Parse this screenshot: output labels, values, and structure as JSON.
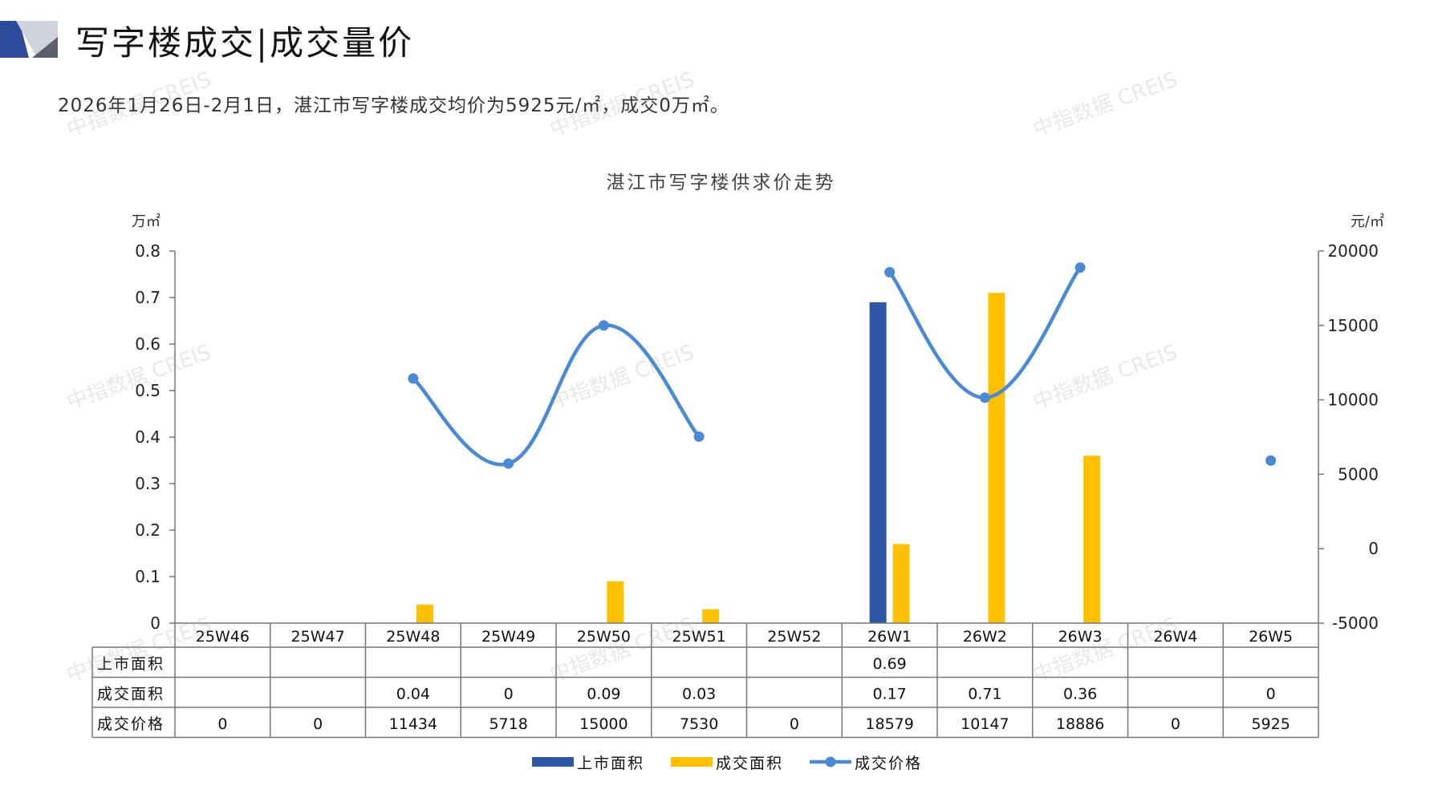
{
  "header": {
    "title": "写字楼成交|成交量价",
    "summary": "2026年1月26日-2月1日，湛江市写字楼成交均价为5925元/㎡，成交0万㎡。"
  },
  "watermark": "中指数据 CREIS",
  "colors": {
    "supply": "#2e58a6",
    "deal": "#ffc000",
    "price": "#4a8ad4",
    "accent_dark": "#2f4a9a",
    "accent_gray": "#cfd3dc"
  },
  "chart_data": {
    "type": "bar+line",
    "title": "湛江市写字楼供求价走势",
    "left_unit": "万㎡",
    "right_unit": "元/㎡",
    "left_ylim": [
      0,
      0.8
    ],
    "left_ticks": [
      "0.8",
      "0.7",
      "0.6",
      "0.5",
      "0.4",
      "0.3",
      "0.2",
      "0.1",
      "0"
    ],
    "right_ylim": [
      -5000,
      20000
    ],
    "right_ticks": [
      "20000",
      "15000",
      "10000",
      "5000",
      "0",
      "-5000"
    ],
    "categories": [
      "25W46",
      "25W47",
      "25W48",
      "25W49",
      "25W50",
      "25W51",
      "25W52",
      "26W1",
      "26W2",
      "26W3",
      "26W4",
      "26W5"
    ],
    "series": [
      {
        "name": "上市面积",
        "kind": "bar",
        "axis": "left",
        "values": [
          null,
          null,
          null,
          null,
          null,
          null,
          null,
          0.69,
          null,
          null,
          null,
          null
        ],
        "labels": [
          "",
          "",
          "",
          "",
          "",
          "",
          "",
          "0.69",
          "",
          "",
          "",
          ""
        ]
      },
      {
        "name": "成交面积",
        "kind": "bar",
        "axis": "left",
        "values": [
          null,
          null,
          0.04,
          0,
          0.09,
          0.03,
          null,
          0.17,
          0.71,
          0.36,
          null,
          0
        ],
        "labels": [
          "",
          "",
          "0.04",
          "0",
          "0.09",
          "0.03",
          "",
          "0.17",
          "0.71",
          "0.36",
          "",
          "0"
        ]
      },
      {
        "name": "成交价格",
        "kind": "line",
        "axis": "right",
        "values": [
          0,
          0,
          11434,
          5718,
          15000,
          7530,
          0,
          18579,
          10147,
          18886,
          0,
          5925
        ],
        "labels": [
          "0",
          "0",
          "11434",
          "5718",
          "15000",
          "7530",
          "0",
          "18579",
          "10147",
          "18886",
          "0",
          "5925"
        ]
      }
    ],
    "table_row_labels": [
      "上市面积",
      "成交面积",
      "成交价格"
    ],
    "legend": [
      "上市面积",
      "成交面积",
      "成交价格"
    ],
    "legend_position": "bottom"
  }
}
